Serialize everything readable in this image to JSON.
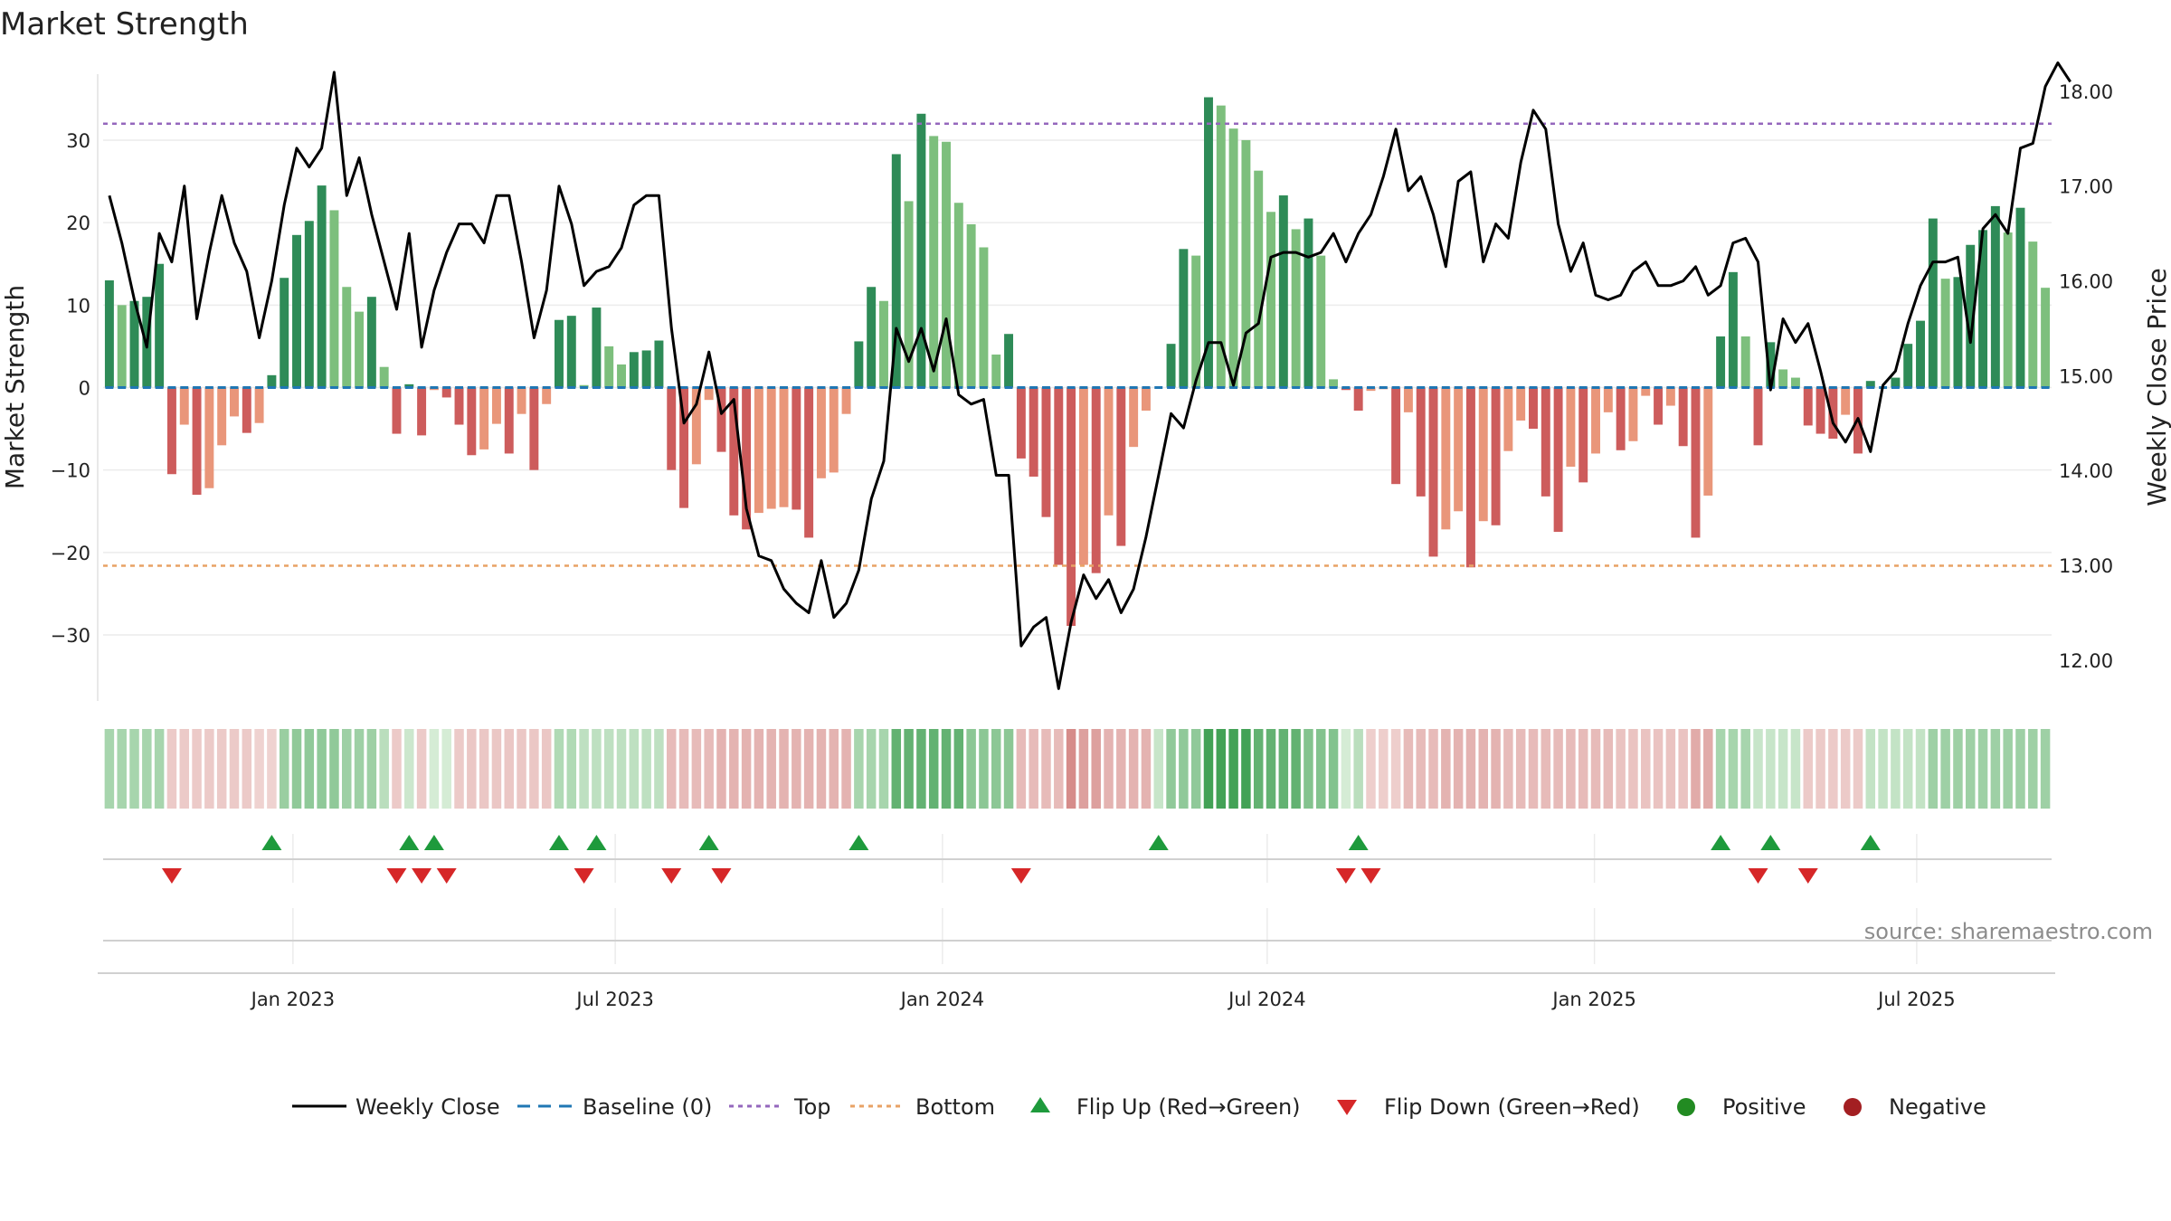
{
  "chart_data": {
    "type": "bar",
    "title": "Market Strength",
    "ylabel_left": "Market Strength",
    "ylabel_right": "Weekly Close Price",
    "ylim_left": [
      -38,
      38
    ],
    "yticks_left": [
      30,
      20,
      10,
      0,
      -10,
      -20,
      -30
    ],
    "ytick_labels_left": [
      "30",
      "20",
      "10",
      "0",
      "−10",
      "−20",
      "−30"
    ],
    "ylim_right": [
      11.57,
      18.18
    ],
    "yticks_right": [
      18,
      17,
      16,
      15,
      14,
      13,
      12
    ],
    "ytick_labels_right": [
      "18.00",
      "17.00",
      "16.00",
      "15.00",
      "14.00",
      "13.00",
      "12.00"
    ],
    "top_level": 32,
    "bottom_level": -21.6,
    "x_ticks": [
      "Jan 2023",
      "Jul 2023",
      "Jan 2024",
      "Jul 2024",
      "Jan 2025",
      "Jul 2025"
    ],
    "x_tick_weeks": [
      14.7,
      40.5,
      66.7,
      92.7,
      118.9,
      144.7
    ],
    "strength": [
      13,
      10,
      10.5,
      11,
      15,
      -10.5,
      -4.5,
      -13,
      -12.2,
      -7,
      -3.5,
      -5.5,
      -4.3,
      1.5,
      13.3,
      18.5,
      20.2,
      24.5,
      21.5,
      12.2,
      9.2,
      11,
      2.5,
      -5.6,
      0.4,
      -5.8,
      -0.3,
      -1.2,
      -4.5,
      -8.2,
      -7.5,
      -4.4,
      -8,
      -3.2,
      -10,
      -2,
      8.2,
      8.7,
      0.3,
      9.7,
      5,
      2.8,
      4.3,
      4.5,
      5.7,
      -10,
      -14.6,
      -9.3,
      -1.5,
      -7.8,
      -15.5,
      -17.2,
      -15.2,
      -14.7,
      -14.5,
      -14.8,
      -18.2,
      -11,
      -10.3,
      -3.2,
      5.6,
      12.2,
      10.5,
      28.3,
      22.6,
      33.2,
      30.5,
      29.8,
      22.4,
      19.8,
      17,
      4,
      6.5,
      -8.6,
      -10.8,
      -15.7,
      -21.5,
      -28.9,
      -21.5,
      -22.5,
      -15.5,
      -19.2,
      -7.2,
      -2.8,
      0,
      5.3,
      16.8,
      16,
      35.2,
      34.2,
      31.4,
      30,
      26.3,
      21.3,
      23.3,
      19.2,
      20.5,
      16,
      1,
      -0.3,
      -2.8,
      -0.4,
      -0.2,
      -11.7,
      -3,
      -13.2,
      -20.5,
      -17.2,
      -15,
      -21.8,
      -16.2,
      -16.7,
      -7.7,
      -4,
      -5,
      -13.2,
      -17.5,
      -9.6,
      -11.5,
      -8,
      -3,
      -7.6,
      -6.5,
      -1,
      -4.5,
      -2.2,
      -7.1,
      -18.2,
      -13.1,
      6.2,
      14,
      6.2,
      -7,
      5.5,
      2.2,
      1.2,
      -4.6,
      -5.6,
      -6.2,
      -3.3,
      -8,
      0.8,
      0,
      1.2,
      5.3,
      8.1,
      20.5,
      13.2,
      13.4,
      17.3,
      19.1,
      22,
      18.8,
      21.8,
      17.7,
      12.1
    ],
    "weekly_close": [
      16.9,
      16.4,
      15.8,
      15.3,
      16.5,
      16.2,
      17,
      15.6,
      16.3,
      16.9,
      16.4,
      16.1,
      15.4,
      16,
      16.8,
      17.4,
      17.2,
      17.4,
      18.2,
      16.9,
      17.3,
      16.7,
      16.2,
      15.7,
      16.5,
      15.3,
      15.9,
      16.3,
      16.6,
      16.6,
      16.4,
      16.9,
      16.9,
      16.2,
      15.4,
      15.9,
      17,
      16.6,
      15.95,
      16.1,
      16.15,
      16.35,
      16.8,
      16.9,
      16.9,
      15.5,
      14.5,
      14.7,
      15.25,
      14.6,
      14.75,
      13.6,
      13.1,
      13.05,
      12.75,
      12.6,
      12.5,
      13.05,
      12.45,
      12.6,
      12.95,
      13.7,
      14.1,
      15.5,
      15.15,
      15.5,
      15.05,
      15.6,
      14.8,
      14.7,
      14.75,
      13.95,
      13.95,
      12.15,
      12.35,
      12.45,
      11.7,
      12.4,
      12.9,
      12.65,
      12.85,
      12.5,
      12.75,
      13.3,
      13.95,
      14.6,
      14.45,
      14.95,
      15.35,
      15.35,
      14.9,
      15.45,
      15.55,
      16.25,
      16.3,
      16.3,
      16.25,
      16.3,
      16.5,
      16.2,
      16.5,
      16.7,
      17.1,
      17.6,
      16.95,
      17.1,
      16.7,
      16.15,
      17.05,
      17.15,
      16.2,
      16.6,
      16.45,
      17.25,
      17.8,
      17.6,
      16.6,
      16.1,
      16.4,
      15.85,
      15.8,
      15.85,
      16.1,
      16.2,
      15.95,
      15.95,
      16,
      16.15,
      15.85,
      15.95,
      16.4,
      16.45,
      16.2,
      14.85,
      15.6,
      15.35,
      15.55,
      15.05,
      14.5,
      14.3,
      14.55,
      14.2,
      14.9,
      15.05,
      15.55,
      15.95,
      16.2,
      16.2,
      16.25,
      15.35,
      16.55,
      16.7,
      16.5,
      17.4,
      17.45,
      18.05,
      18.3,
      18.1
    ],
    "tiles_strength": [
      10,
      10,
      10,
      10,
      10,
      -4,
      -4,
      -4,
      -4,
      -4,
      -4,
      -4,
      -2,
      -2,
      13,
      15,
      15,
      15,
      15,
      12,
      12,
      12,
      6,
      -4,
      2,
      -4,
      0,
      0,
      -4,
      -5,
      -5,
      -5,
      -5,
      -5,
      -5,
      -5,
      8,
      8,
      5,
      5,
      5,
      5,
      5,
      5,
      5,
      -8,
      -8,
      -8,
      -8,
      -10,
      -10,
      -10,
      -10,
      -10,
      -10,
      -10,
      -10,
      -10,
      -10,
      -10,
      10,
      10,
      10,
      25,
      25,
      25,
      25,
      25,
      25,
      16,
      16,
      16,
      16,
      -8,
      -8,
      -8,
      -8,
      -20,
      -15,
      -15,
      -10,
      -10,
      -10,
      -10,
      3,
      15,
      15,
      15,
      32,
      32,
      32,
      32,
      25,
      25,
      25,
      25,
      18,
      18,
      18,
      0,
      6,
      -3,
      -3,
      -3,
      -8,
      -8,
      -8,
      -10,
      -10,
      -10,
      -10,
      -10,
      -8,
      -8,
      -8,
      -8,
      -8,
      -8,
      -8,
      -8,
      -8,
      -6,
      -6,
      -6,
      -6,
      -6,
      -6,
      -12,
      -12,
      10,
      10,
      10,
      3,
      3,
      3,
      3,
      -4,
      -4,
      -4,
      -4,
      -4,
      4,
      4,
      4,
      4,
      4,
      12,
      12,
      12,
      12,
      12,
      12,
      12,
      12,
      12,
      12
    ],
    "flip_up_weeks": [
      13,
      24,
      26,
      36,
      39,
      48,
      60,
      84,
      100,
      129,
      133,
      141
    ],
    "flip_down_weeks": [
      5,
      23,
      25,
      27,
      38,
      45,
      49,
      73,
      99,
      101,
      132,
      136
    ],
    "legend": [
      "Weekly Close",
      "Baseline (0)",
      "Top",
      "Bottom",
      "Flip Up (Red→Green)",
      "Flip Down (Green→Red)",
      "Positive",
      "Negative"
    ],
    "source": "source: sharemaestro.com",
    "colors": {
      "pos_dark": "#2e8b57",
      "pos_light": "#7dbf7d",
      "neg_dark": "#cd5c5c",
      "neg_light": "#e9967a",
      "top": "#9467bd",
      "bottom": "#e8a265",
      "baseline": "#1f77b4",
      "flip_up": "#1e9a3c",
      "flip_down": "#d62728",
      "positive_dot": "#228b22",
      "negative_dot": "#a31f22",
      "close": "#000000"
    }
  }
}
